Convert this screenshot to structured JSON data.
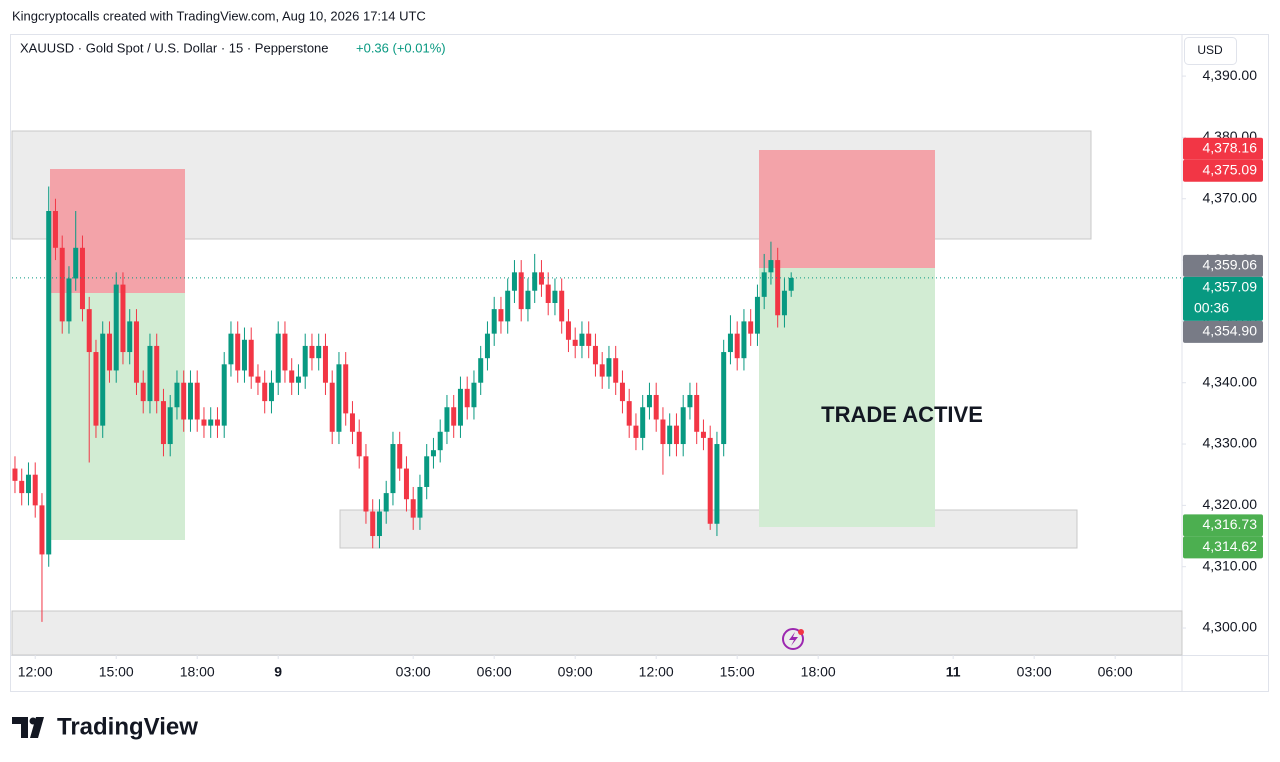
{
  "header": {
    "credit": "Kingcryptocalls created with TradingView.com, Aug 10, 2026 17:14 UTC",
    "symbol": "XAUUSD · Gold Spot / U.S. Dollar · 15 · Pepperstone",
    "change": "+0.36 (+0.01%)",
    "currency": "USD"
  },
  "annotation": "TRADE ACTIVE",
  "brand": "TradingView",
  "chart_data": {
    "type": "candlestick",
    "up_color": "#089981",
    "down_color": "#f23645",
    "xlim": [
      -0.44,
      172.9
    ],
    "ylim": [
      4295.6,
      4396.7
    ],
    "xticks": [
      {
        "value": 3,
        "label": "12:00"
      },
      {
        "value": 15,
        "label": "15:00"
      },
      {
        "value": 27,
        "label": "18:00"
      },
      {
        "value": 39,
        "label": "9"
      },
      {
        "value": 59,
        "label": "03:00"
      },
      {
        "value": 71,
        "label": "06:00"
      },
      {
        "value": 83,
        "label": "09:00"
      },
      {
        "value": 95,
        "label": "12:00"
      },
      {
        "value": 107,
        "label": "15:00"
      },
      {
        "value": 119,
        "label": "18:00"
      },
      {
        "value": 139,
        "label": "11"
      },
      {
        "value": 151,
        "label": "03:00"
      },
      {
        "value": 163,
        "label": "06:00"
      }
    ],
    "yticks": [
      {
        "value": 4390,
        "label": "4,390.00"
      },
      {
        "value": 4380,
        "label": "4,380.00"
      },
      {
        "value": 4370,
        "label": "4,370.00"
      },
      {
        "value": 4360,
        "label": "4,360.00"
      },
      {
        "value": 4350,
        "label": "4,350.00"
      },
      {
        "value": 4340,
        "label": "4,340.00"
      },
      {
        "value": 4330,
        "label": "4,330.00"
      },
      {
        "value": 4320,
        "label": "4,320.00"
      },
      {
        "value": 4310,
        "label": "4,310.00"
      },
      {
        "value": 4300,
        "label": "4,300.00"
      }
    ],
    "price_labels": [
      {
        "value": 4378.16,
        "label": "4,378.16",
        "color": "#f23645"
      },
      {
        "value": 4375.09,
        "label": "4,375.09",
        "color": "#f23645"
      },
      {
        "value": 4359.06,
        "label": "4,359.06",
        "color": "#787b86"
      },
      {
        "value": 4357.09,
        "label": "4,357.09",
        "color": "#089981",
        "countdown": "00:36"
      },
      {
        "value": 4354.9,
        "label": "4,354.90",
        "color": "#787b86"
      },
      {
        "value": 4316.73,
        "label": "4,316.73",
        "color": "#4caf50"
      },
      {
        "value": 4314.62,
        "label": "4,314.62",
        "color": "#4caf50"
      }
    ],
    "last_price": 4357.09,
    "candles": [
      [
        4326,
        4328,
        4322,
        4324
      ],
      [
        4324,
        4326,
        4320,
        4322
      ],
      [
        4322,
        4327,
        4320,
        4325
      ],
      [
        4325,
        4327,
        4318,
        4320
      ],
      [
        4320,
        4322,
        4301,
        4312
      ],
      [
        4312,
        4372,
        4310,
        4368
      ],
      [
        4368,
        4370,
        4360,
        4362
      ],
      [
        4362,
        4364,
        4348,
        4350
      ],
      [
        4350,
        4359,
        4348,
        4357
      ],
      [
        4357,
        4368,
        4355,
        4362
      ],
      [
        4362,
        4364,
        4350,
        4352
      ],
      [
        4352,
        4354,
        4327,
        4345
      ],
      [
        4345,
        4347,
        4331,
        4333
      ],
      [
        4333,
        4350,
        4331,
        4348
      ],
      [
        4348,
        4350,
        4340,
        4342
      ],
      [
        4342,
        4358,
        4340,
        4356
      ],
      [
        4356,
        4358,
        4343,
        4345
      ],
      [
        4345,
        4352,
        4343,
        4350
      ],
      [
        4350,
        4352,
        4338,
        4340
      ],
      [
        4340,
        4342,
        4335,
        4337
      ],
      [
        4337,
        4348,
        4335,
        4346
      ],
      [
        4346,
        4348,
        4335,
        4337
      ],
      [
        4337,
        4339,
        4328,
        4330
      ],
      [
        4330,
        4338,
        4328,
        4336
      ],
      [
        4336,
        4342,
        4334,
        4340
      ],
      [
        4340,
        4342,
        4332,
        4334
      ],
      [
        4334,
        4342,
        4332,
        4340
      ],
      [
        4340,
        4342,
        4332,
        4334
      ],
      [
        4334,
        4336,
        4331,
        4333
      ],
      [
        4333,
        4336,
        4331,
        4334
      ],
      [
        4334,
        4336,
        4331,
        4333
      ],
      [
        4333,
        4345,
        4331,
        4343
      ],
      [
        4343,
        4350,
        4341,
        4348
      ],
      [
        4348,
        4350,
        4340,
        4342
      ],
      [
        4342,
        4349,
        4340,
        4347
      ],
      [
        4347,
        4349,
        4339,
        4341
      ],
      [
        4341,
        4343,
        4338,
        4340
      ],
      [
        4340,
        4342,
        4335,
        4337
      ],
      [
        4337,
        4342,
        4335,
        4340
      ],
      [
        4340,
        4350,
        4338,
        4348
      ],
      [
        4348,
        4350,
        4340,
        4342
      ],
      [
        4342,
        4344,
        4338,
        4340
      ],
      [
        4340,
        4343,
        4338,
        4341
      ],
      [
        4341,
        4348,
        4339,
        4346
      ],
      [
        4346,
        4348,
        4342,
        4344
      ],
      [
        4344,
        4348,
        4342,
        4346
      ],
      [
        4346,
        4348,
        4338,
        4340
      ],
      [
        4340,
        4342,
        4330,
        4332
      ],
      [
        4332,
        4345,
        4330,
        4343
      ],
      [
        4343,
        4345,
        4333,
        4335
      ],
      [
        4335,
        4337,
        4330,
        4332
      ],
      [
        4332,
        4334,
        4326,
        4328
      ],
      [
        4328,
        4330,
        4317,
        4319
      ],
      [
        4319,
        4321,
        4313,
        4315
      ],
      [
        4315,
        4321,
        4313,
        4319
      ],
      [
        4319,
        4324,
        4317,
        4322
      ],
      [
        4322,
        4332,
        4320,
        4330
      ],
      [
        4330,
        4332,
        4324,
        4326
      ],
      [
        4326,
        4328,
        4319,
        4321
      ],
      [
        4321,
        4323,
        4316,
        4318
      ],
      [
        4318,
        4325,
        4316,
        4323
      ],
      [
        4323,
        4330,
        4321,
        4328
      ],
      [
        4328,
        4331,
        4326,
        4329
      ],
      [
        4329,
        4334,
        4327,
        4332
      ],
      [
        4332,
        4338,
        4330,
        4336
      ],
      [
        4336,
        4338,
        4331,
        4333
      ],
      [
        4333,
        4341,
        4331,
        4339
      ],
      [
        4339,
        4341,
        4334,
        4336
      ],
      [
        4336,
        4342,
        4334,
        4340
      ],
      [
        4340,
        4346,
        4338,
        4344
      ],
      [
        4344,
        4350,
        4342,
        4348
      ],
      [
        4348,
        4354,
        4346,
        4352
      ],
      [
        4352,
        4354,
        4348,
        4350
      ],
      [
        4350,
        4357,
        4348,
        4355
      ],
      [
        4355,
        4360,
        4353,
        4358
      ],
      [
        4358,
        4360,
        4350,
        4352
      ],
      [
        4352,
        4357,
        4350,
        4355
      ],
      [
        4355,
        4361,
        4353,
        4358
      ],
      [
        4358,
        4360,
        4354,
        4356
      ],
      [
        4356,
        4358,
        4351,
        4353
      ],
      [
        4353,
        4357,
        4351,
        4355
      ],
      [
        4355,
        4357,
        4348,
        4350
      ],
      [
        4350,
        4352,
        4345,
        4347
      ],
      [
        4347,
        4349,
        4344,
        4346
      ],
      [
        4346,
        4350,
        4344,
        4348
      ],
      [
        4348,
        4350,
        4344,
        4346
      ],
      [
        4346,
        4348,
        4341,
        4343
      ],
      [
        4343,
        4345,
        4339,
        4341
      ],
      [
        4341,
        4346,
        4339,
        4344
      ],
      [
        4344,
        4346,
        4338,
        4340
      ],
      [
        4340,
        4342,
        4335,
        4337
      ],
      [
        4337,
        4339,
        4331,
        4333
      ],
      [
        4333,
        4335,
        4329,
        4331
      ],
      [
        4331,
        4338,
        4329,
        4336
      ],
      [
        4336,
        4340,
        4334,
        4338
      ],
      [
        4338,
        4340,
        4332,
        4334
      ],
      [
        4334,
        4336,
        4325,
        4330
      ],
      [
        4330,
        4335,
        4328,
        4333
      ],
      [
        4333,
        4335,
        4328,
        4330
      ],
      [
        4330,
        4338,
        4328,
        4336
      ],
      [
        4336,
        4340,
        4334,
        4338
      ],
      [
        4338,
        4340,
        4330,
        4332
      ],
      [
        4332,
        4334,
        4329,
        4331
      ],
      [
        4331,
        4333,
        4316,
        4317
      ],
      [
        4317,
        4332,
        4315,
        4330
      ],
      [
        4330,
        4347,
        4328,
        4345
      ],
      [
        4345,
        4351,
        4343,
        4348
      ],
      [
        4348,
        4350,
        4342,
        4344
      ],
      [
        4344,
        4352,
        4342,
        4350
      ],
      [
        4350,
        4352,
        4346,
        4348
      ],
      [
        4348,
        4356,
        4346,
        4354
      ],
      [
        4354,
        4361,
        4352,
        4358
      ],
      [
        4358,
        4363,
        4356,
        4360
      ],
      [
        4360,
        4362,
        4349,
        4351
      ],
      [
        4351,
        4357,
        4349,
        4355
      ],
      [
        4355,
        4358,
        4354,
        4357.09
      ]
    ]
  }
}
